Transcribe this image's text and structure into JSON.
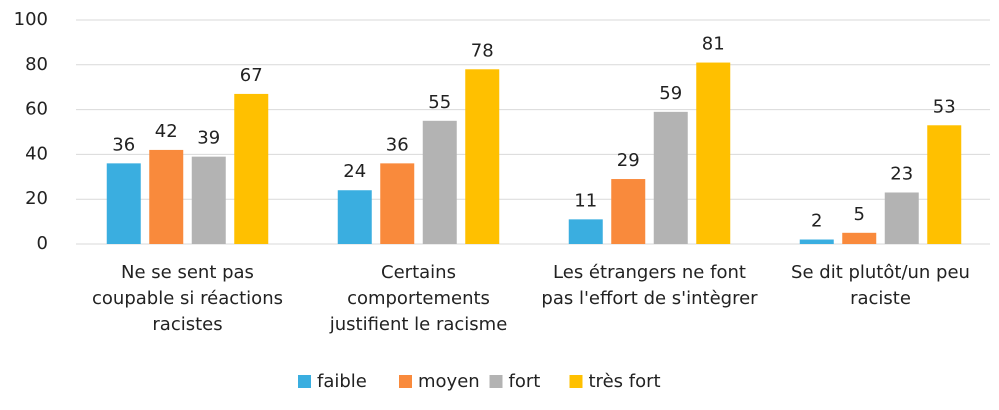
{
  "chart_data": {
    "type": "bar",
    "categories": [
      "Ne se sent pas coupable si réactions racistes",
      "Certains comportements justifient le racisme",
      "Les étrangers ne font pas l'effort de s'intègrer",
      "Se dit plutôt/un peu raciste"
    ],
    "series": [
      {
        "name": "faible",
        "color": "#3aaee0",
        "values": [
          36,
          24,
          11,
          2
        ]
      },
      {
        "name": "moyen",
        "color": "#f98a3c",
        "values": [
          42,
          36,
          29,
          5
        ]
      },
      {
        "name": "fort",
        "color": "#b3b3b3",
        "values": [
          39,
          55,
          59,
          23
        ]
      },
      {
        "name": "très fort",
        "color": "#ffc000",
        "values": [
          67,
          78,
          81,
          53
        ]
      }
    ],
    "ylim": [
      0,
      100
    ],
    "yticks": [
      0,
      20,
      40,
      60,
      80,
      100
    ],
    "grid": true,
    "legend": "bottom"
  }
}
